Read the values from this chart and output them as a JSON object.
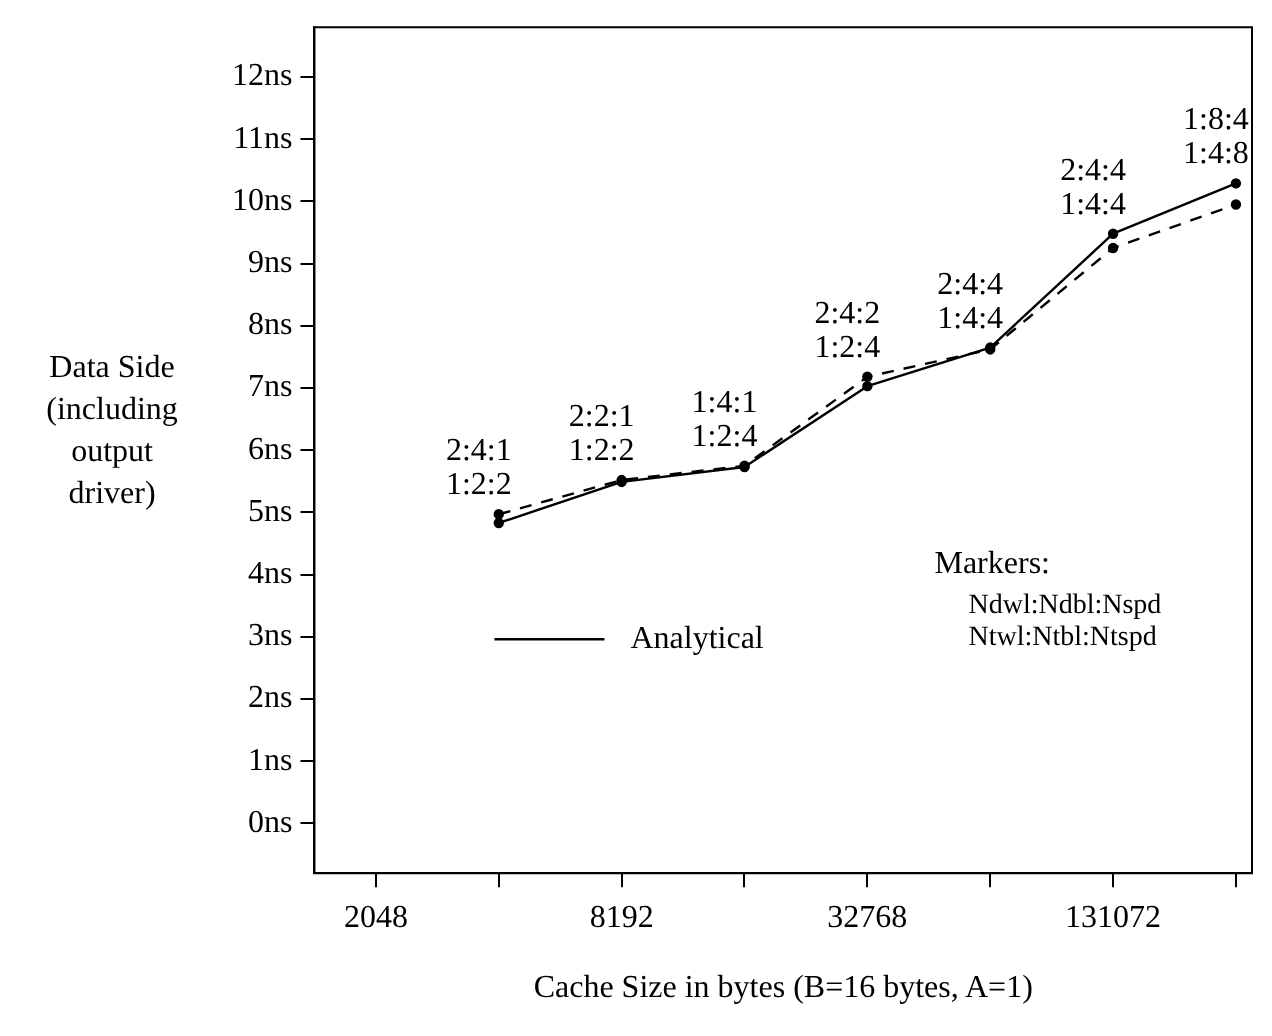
{
  "chart_data": {
    "type": "line",
    "xlabel": "Cache Size in bytes (B=16 bytes, A=1)",
    "ylabel": "Data Side (including output driver)",
    "x": [
      4096,
      8192,
      16384,
      32768,
      65536,
      131072,
      262144
    ],
    "series": [
      {
        "name": "Analytical",
        "color": "#000000",
        "line_style": "solid",
        "values": [
          4.83,
          5.49,
          5.73,
          7.03,
          7.65,
          9.48,
          10.29
        ]
      },
      {
        "color": "#000000",
        "line_style": "dashed",
        "values": [
          4.97,
          5.52,
          5.75,
          7.18,
          7.62,
          9.25,
          9.95
        ]
      }
    ],
    "log": "x",
    "xlim": [
      1448,
      287000
    ],
    "xticks": [
      {
        "value": 2048,
        "label": "2048"
      },
      {
        "value": 4096,
        "label": null
      },
      {
        "value": 8192,
        "label": "8192"
      },
      {
        "value": 16384,
        "label": null
      },
      {
        "value": 32768,
        "label": "32768"
      },
      {
        "value": 65536,
        "label": null
      },
      {
        "value": 131072,
        "label": "131072"
      },
      {
        "value": 262144,
        "label": null
      }
    ],
    "ylim": [
      -0.8,
      12.8
    ],
    "yticks": [
      {
        "value": 0,
        "label": "0ns"
      },
      {
        "value": 1,
        "label": "1ns"
      },
      {
        "value": 2,
        "label": "2ns"
      },
      {
        "value": 3,
        "label": "3ns"
      },
      {
        "value": 4,
        "label": "4ns"
      },
      {
        "value": 5,
        "label": "5ns"
      },
      {
        "value": 6,
        "label": "6ns"
      },
      {
        "value": 7,
        "label": "7ns"
      },
      {
        "value": 8,
        "label": "8ns"
      },
      {
        "value": 9,
        "label": "9ns"
      },
      {
        "value": 10,
        "label": "10ns"
      },
      {
        "value": 11,
        "label": "11ns"
      },
      {
        "value": 12,
        "label": "12ns"
      }
    ],
    "marker": "circle",
    "grid": false,
    "legend": "bottom left",
    "annotations": [
      {
        "text": "2:4:1\n1:2:2",
        "x": 4096,
        "y": 4.97
      },
      {
        "text": "2:2:1\n1:2:2",
        "x": 8192,
        "y": 5.52
      },
      {
        "text": "1:4:1\n1:2:4",
        "x": 16384,
        "y": 5.75
      },
      {
        "text": "2:4:2\n1:2:4",
        "x": 32768,
        "y": 7.18
      },
      {
        "text": "2:4:4\n1:4:4",
        "x": 65536,
        "y": 7.65
      },
      {
        "text": "2:4:4\n1:4:4",
        "x": 131072,
        "y": 9.48
      },
      {
        "text": "1:8:4\n1:4:8",
        "x": 262144,
        "y": 10.29
      },
      "Markers:",
      "Ndwl:Ndbl:Nspd",
      "Ntwl:Ntbl:Ntspd"
    ]
  }
}
